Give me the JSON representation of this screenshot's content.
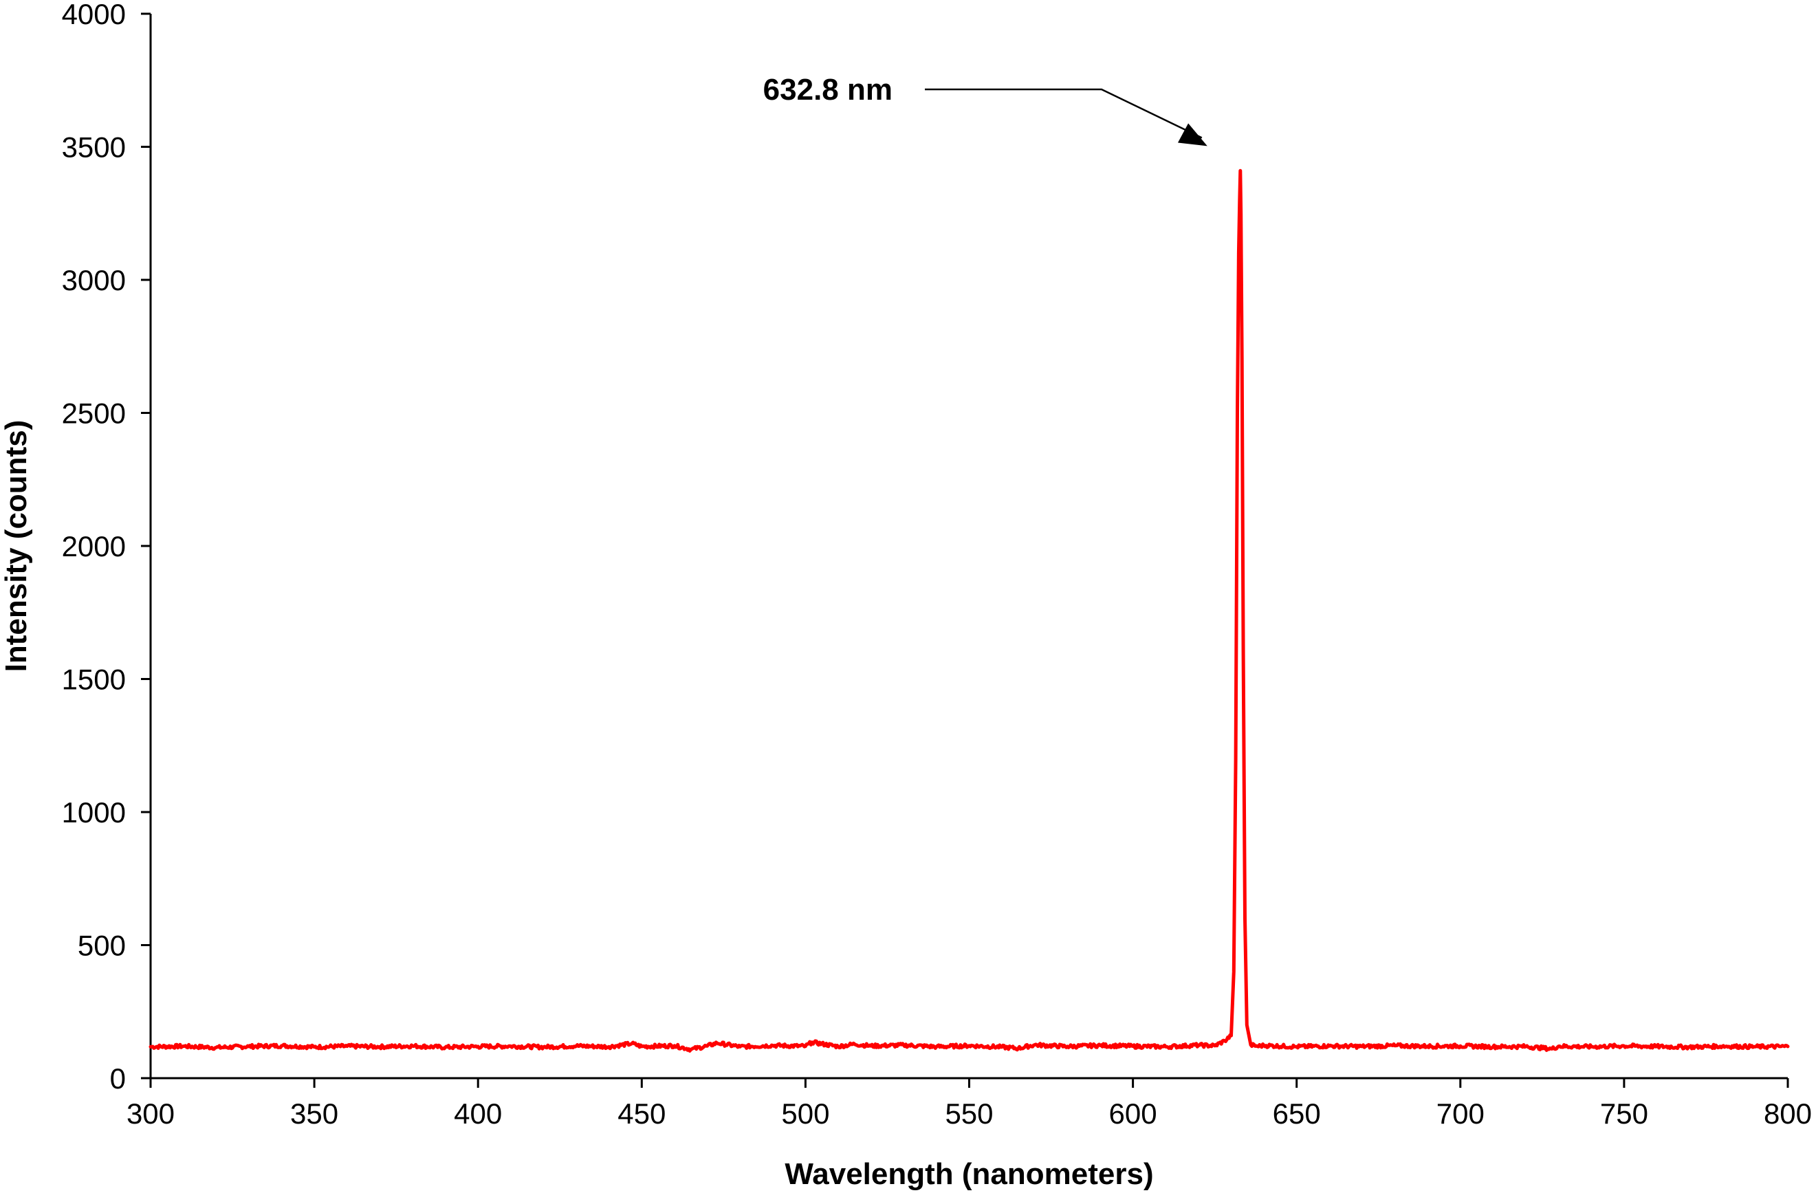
{
  "chart_data": {
    "type": "line",
    "xlabel": "Wavelength (nanometers)",
    "ylabel": "Intensity (counts)",
    "xlim": [
      300,
      800
    ],
    "ylim": [
      0,
      4000
    ],
    "x_ticks": [
      300,
      350,
      400,
      450,
      500,
      550,
      600,
      650,
      700,
      750,
      800
    ],
    "y_ticks": [
      0,
      500,
      1000,
      1500,
      2000,
      2500,
      3000,
      3500,
      4000
    ],
    "x_tick_labels": [
      "300",
      "350",
      "400",
      "450",
      "500",
      "550",
      "600",
      "650",
      "700",
      "750",
      "800"
    ],
    "y_tick_labels": [
      "0",
      "500",
      "1000",
      "1500",
      "2000",
      "2500",
      "3000",
      "3500",
      "4000"
    ],
    "grid": false,
    "legend": "none",
    "series": [
      {
        "color": "#ff0000",
        "x": [
          300,
          310,
          320,
          330,
          340,
          350,
          360,
          370,
          380,
          390,
          400,
          410,
          420,
          430,
          440,
          447,
          450,
          460,
          465,
          470,
          473,
          480,
          490,
          500,
          502,
          510,
          515,
          520,
          530,
          540,
          550,
          560,
          565,
          570,
          580,
          590,
          600,
          610,
          620,
          625,
          628,
          630,
          630.8,
          631.4,
          631.9,
          632.3,
          632.6,
          632.8,
          633.0,
          633.3,
          633.7,
          634.2,
          634.8,
          636,
          638,
          640,
          650,
          660,
          670,
          680,
          690,
          700,
          710,
          720,
          728,
          730,
          740,
          750,
          760,
          770,
          780,
          790,
          800
        ],
        "y": [
          118,
          120,
          115,
          119,
          122,
          117,
          120,
          118,
          121,
          116,
          119,
          120,
          117,
          121,
          118,
          130,
          119,
          122,
          108,
          121,
          132,
          118,
          123,
          120,
          135,
          119,
          128,
          121,
          124,
          118,
          122,
          117,
          112,
          125,
          119,
          123,
          120,
          118,
          124,
          122,
          140,
          160,
          400,
          1200,
          2500,
          3100,
          3300,
          3410,
          3250,
          2700,
          1600,
          600,
          200,
          125,
          120,
          123,
          118,
          121,
          119,
          122,
          120,
          121,
          118,
          119,
          110,
          120,
          118,
          121,
          119,
          117,
          120,
          118,
          119
        ]
      }
    ],
    "annotation": {
      "text": "632.8 nm",
      "x": 632.8,
      "y": 3410
    }
  }
}
